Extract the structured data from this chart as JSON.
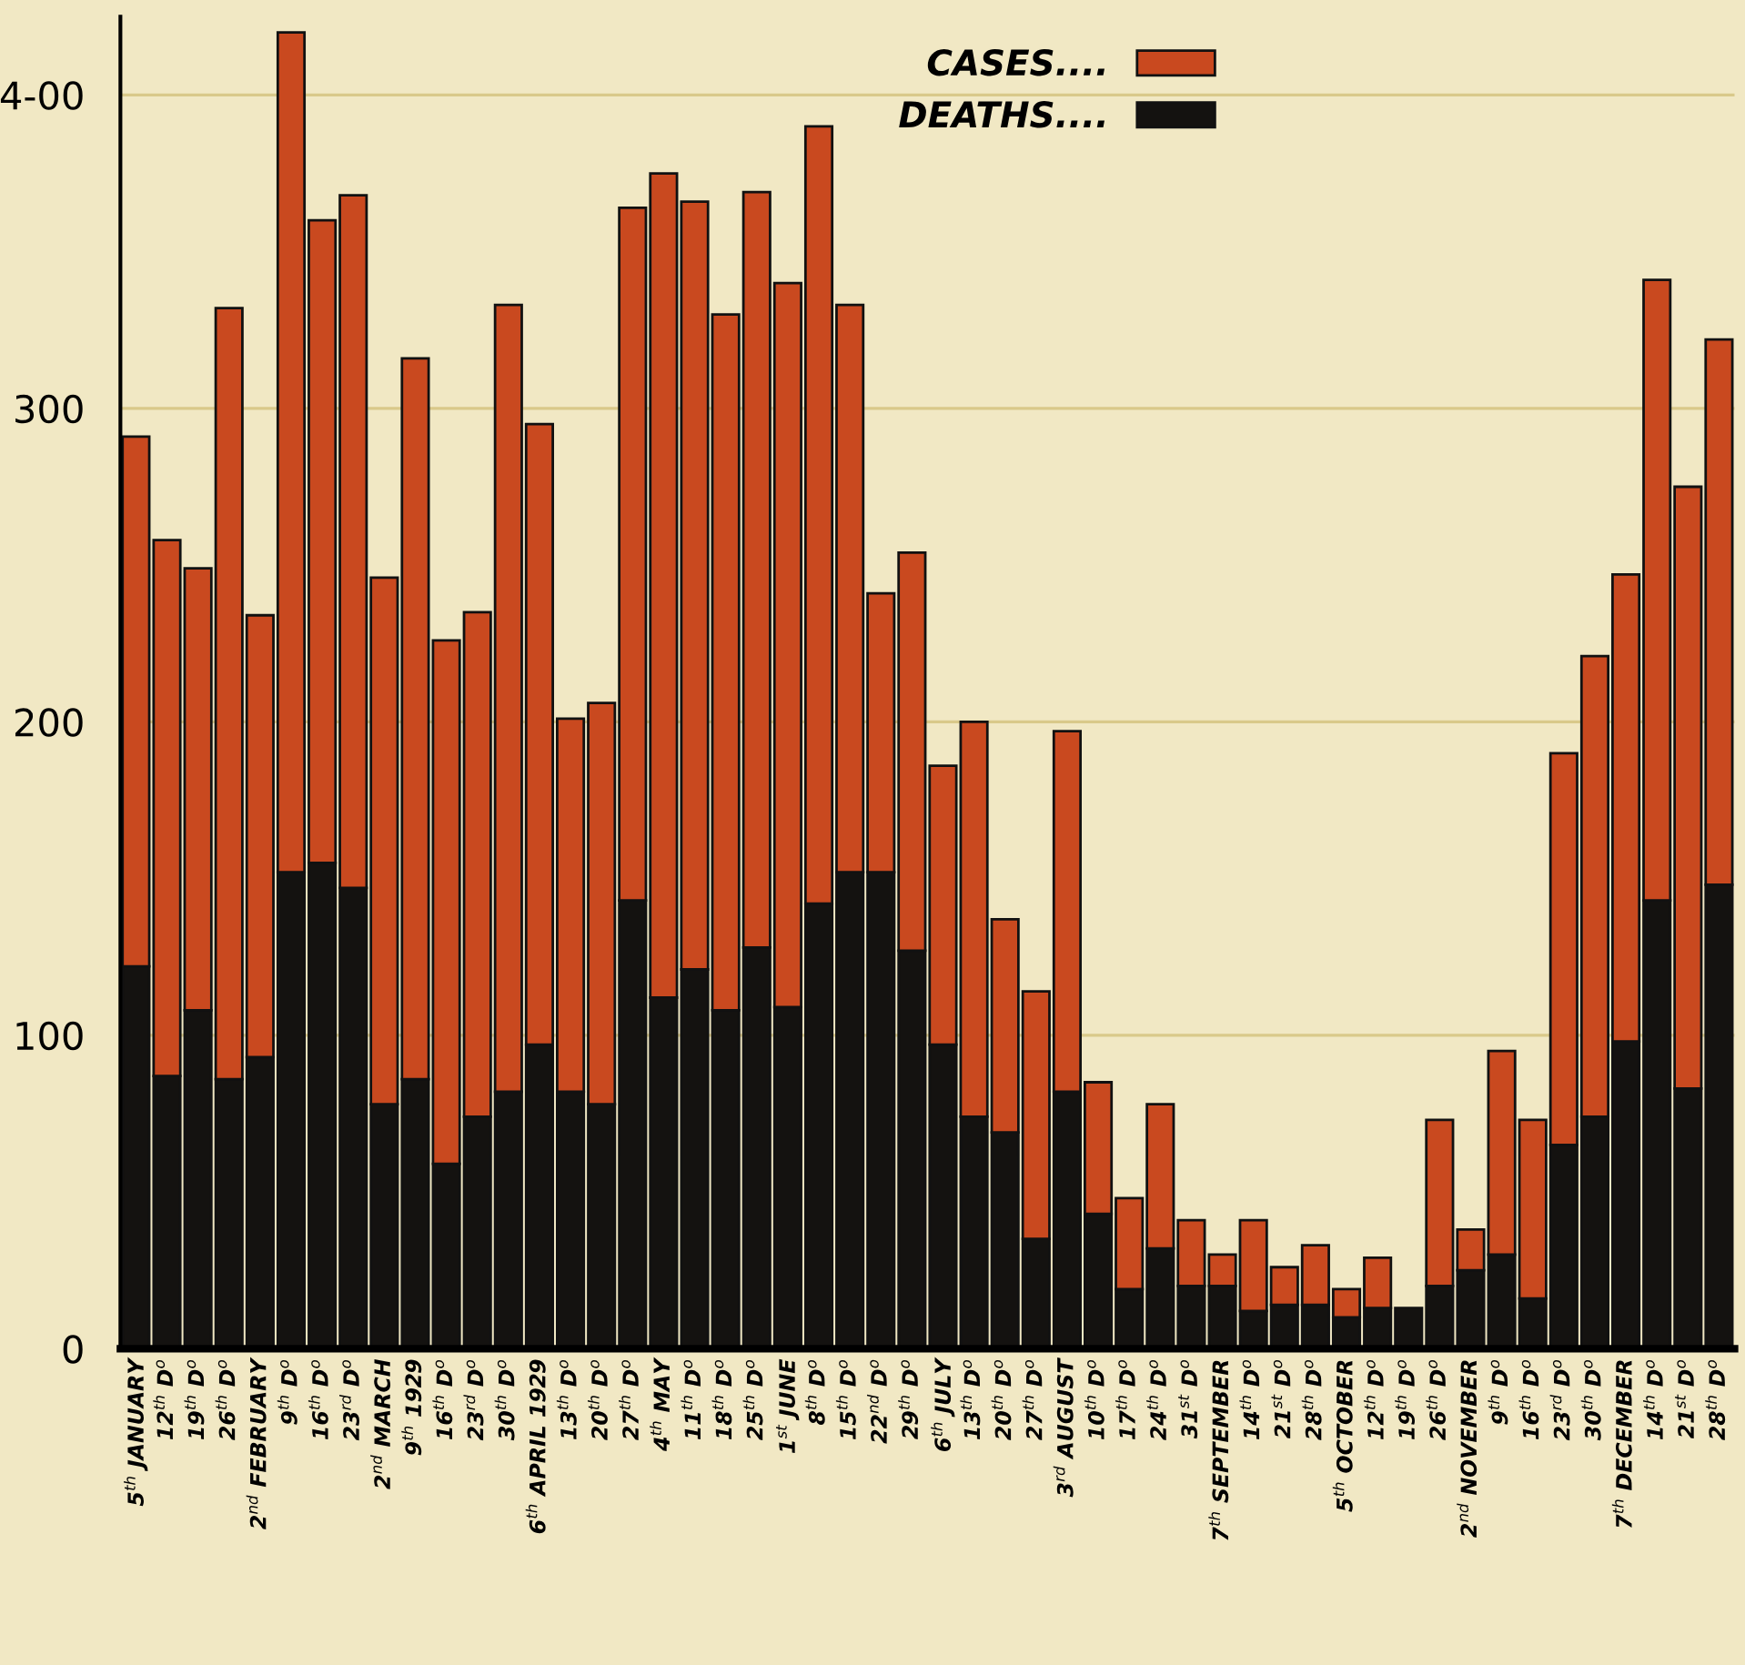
{
  "chart_data": {
    "type": "bar",
    "stacked": true,
    "categories": [
      "5$^{th}$ JANUARY",
      "12$^{th}$ D$^{o}$",
      "19$^{th}$ D$^{o}$",
      "26$^{th}$ D$^{o}$",
      "2$^{nd}$ FEBRUARY",
      "9$^{th}$ D$^{o}$",
      "16$^{th}$ D$^{o}$",
      "23$^{rd}$ D$^{o}$",
      "2$^{nd}$ MARCH",
      "9$^{th}$ 1929",
      "16$^{th}$ D$^{o}$",
      "23$^{rd}$ D$^{o}$",
      "30$^{th}$ D$^{o}$",
      "6$^{th}$ APRIL 1929",
      "13$^{th}$ D$^{o}$",
      "20$^{th}$ D$^{o}$",
      "27$^{th}$ D$^{o}$",
      "4$^{th}$ MAY",
      "11$^{th}$ D$^{o}$",
      "18$^{th}$ D$^{o}$",
      "25$^{th}$ D$^{o}$",
      "1$^{st}$ JUNE",
      "8$^{th}$ D$^{o}$",
      "15$^{th}$ D$^{o}$",
      "22$^{nd}$ D$^{o}$",
      "29$^{th}$ D$^{o}$",
      "6$^{th}$ JULY",
      "13$^{th}$ D$^{o}$",
      "20$^{th}$ D$^{o}$",
      "27$^{th}$ D$^{o}$",
      "3$^{rd}$ AUGUST",
      "10$^{th}$ D$^{o}$",
      "17$^{th}$ D$^{o}$",
      "24$^{th}$ D$^{o}$",
      "31$^{st}$ D$^{o}$",
      "7$^{th}$ SEPTEMBER",
      "14$^{th}$ D$^{o}$",
      "21$^{st}$ D$^{o}$",
      "28$^{th}$ D$^{o}$",
      "5$^{th}$ OCTOBER",
      "12$^{th}$ D$^{o}$",
      "19$^{th}$ D$^{o}$",
      "26$^{th}$ D$^{o}$",
      "2$^{nd}$ NOVEMBER",
      "9$^{th}$ D$^{o}$",
      "16$^{th}$ D$^{o}$",
      "23$^{rd}$ D$^{o}$",
      "30$^{th}$ D$^{o}$",
      "7$^{th}$ DECEMBER",
      "14$^{th}$ D$^{o}$",
      "21$^{st}$ D$^{o}$",
      "28$^{th}$ D$^{o}$"
    ],
    "series": [
      {
        "name": "DEATHS....",
        "color": "#141210",
        "values": [
          122,
          87,
          108,
          86,
          93,
          152,
          155,
          147,
          78,
          86,
          59,
          74,
          82,
          97,
          82,
          78,
          143,
          112,
          121,
          108,
          128,
          109,
          142,
          152,
          152,
          127,
          97,
          74,
          69,
          35,
          82,
          43,
          19,
          32,
          20,
          20,
          12,
          14,
          14,
          10,
          13,
          13,
          20,
          25,
          30,
          16,
          65,
          74,
          98,
          143,
          83,
          148
        ]
      },
      {
        "name": "CASES....",
        "color": "#c9491f",
        "values": [
          169,
          171,
          141,
          246,
          141,
          268,
          205,
          221,
          168,
          230,
          167,
          161,
          251,
          198,
          119,
          128,
          221,
          263,
          245,
          222,
          241,
          231,
          248,
          181,
          89,
          127,
          89,
          126,
          68,
          79,
          115,
          42,
          29,
          46,
          21,
          10,
          29,
          12,
          19,
          9,
          16,
          null,
          53,
          13,
          65,
          57,
          125,
          147,
          149,
          198,
          192,
          174
        ]
      }
    ],
    "ylim": [
      0,
      425
    ],
    "yticks": [
      0,
      100,
      200,
      300,
      {
        "value": 400,
        "label": "4-00"
      }
    ],
    "grid": "y",
    "legend": "top"
  }
}
